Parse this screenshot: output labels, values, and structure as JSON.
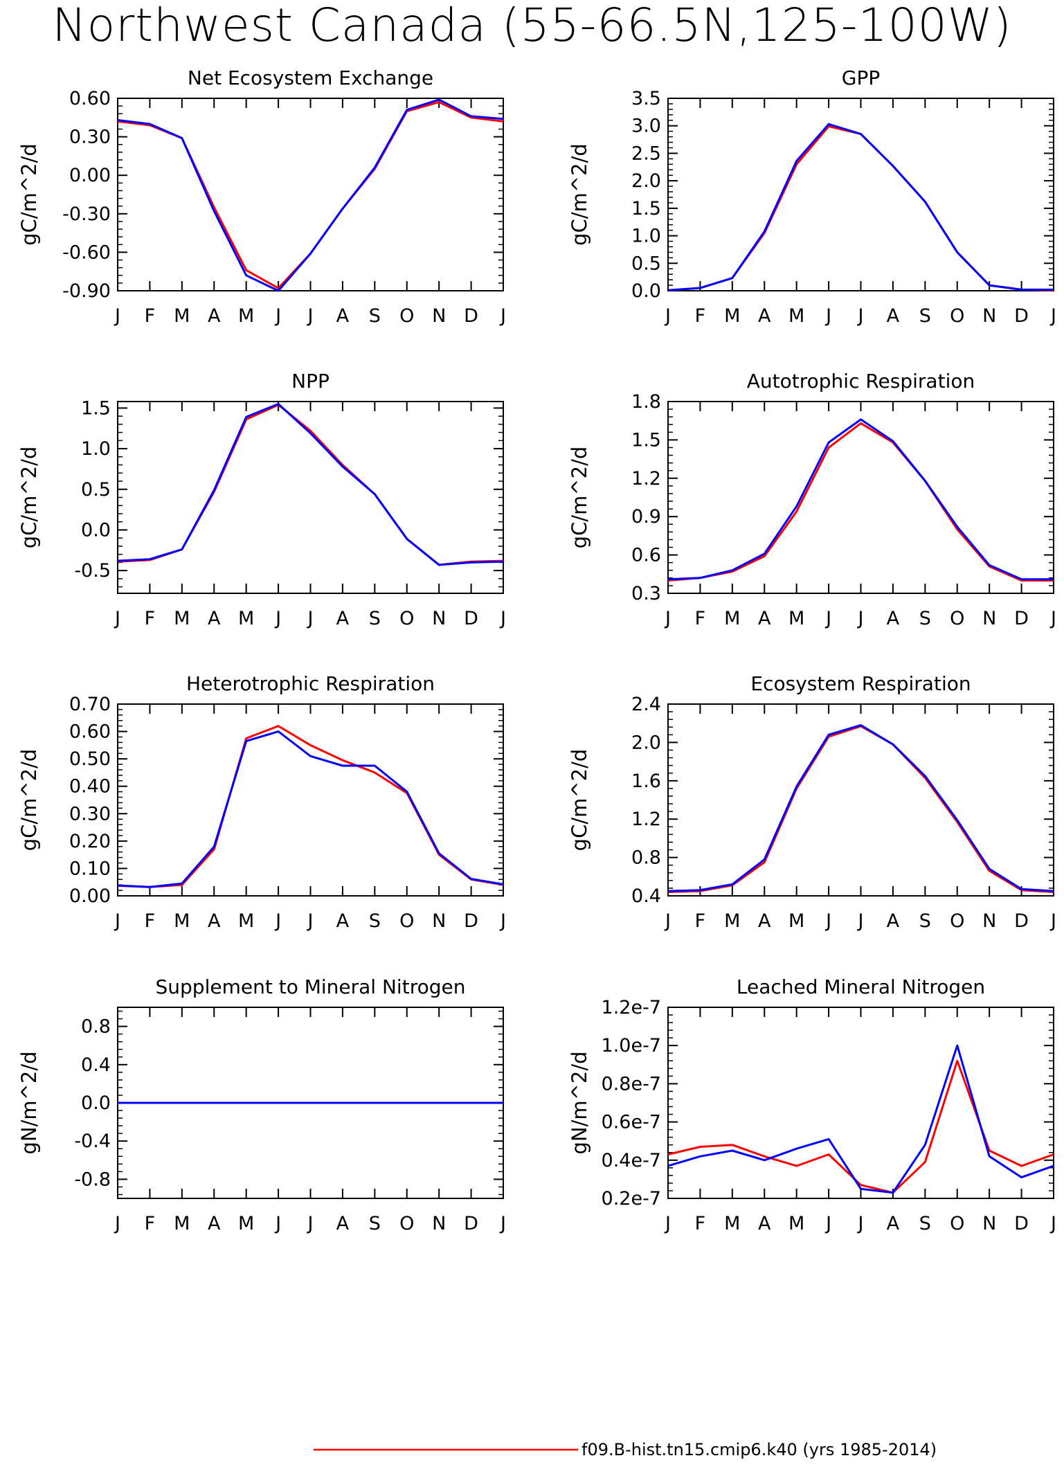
{
  "title": "Northwest Canada (55-66.5N,125-100W)",
  "legend": [
    {
      "label": "f09.B-hist.tn15.cmip6.k40 (yrs 1985-2014)",
      "color": "#ff0000"
    }
  ],
  "chart_data": [
    {
      "type": "line",
      "title": "Net Ecosystem Exchange",
      "ylabel": "gC/m^2/d",
      "categories": [
        "J",
        "F",
        "M",
        "A",
        "M",
        "J",
        "J",
        "A",
        "S",
        "O",
        "N",
        "D",
        "J"
      ],
      "ylim": [
        -0.9,
        0.6
      ],
      "yticks": [
        -0.9,
        -0.6,
        -0.3,
        0.0,
        0.3,
        0.6
      ],
      "ytick_labels": [
        "-0.90",
        "-0.60",
        "-0.30",
        "0.00",
        "0.30",
        "0.60"
      ],
      "series": [
        {
          "color": "#ff0000",
          "values": [
            0.42,
            0.39,
            0.29,
            -0.25,
            -0.74,
            -0.88,
            -0.61,
            -0.26,
            0.05,
            0.5,
            0.57,
            0.45,
            0.42
          ]
        },
        {
          "color": "#0000ff",
          "values": [
            0.43,
            0.4,
            0.29,
            -0.28,
            -0.78,
            -0.9,
            -0.61,
            -0.26,
            0.06,
            0.51,
            0.59,
            0.46,
            0.44
          ]
        }
      ]
    },
    {
      "type": "line",
      "title": "GPP",
      "ylabel": "gC/m^2/d",
      "categories": [
        "J",
        "F",
        "M",
        "A",
        "M",
        "J",
        "J",
        "A",
        "S",
        "O",
        "N",
        "D",
        "J"
      ],
      "ylim": [
        0.0,
        3.5
      ],
      "yticks": [
        0.0,
        0.5,
        1.0,
        1.5,
        2.0,
        2.5,
        3.0,
        3.5
      ],
      "ytick_labels": [
        "0.0",
        "0.5",
        "1.0",
        "1.5",
        "2.0",
        "2.5",
        "3.0",
        "3.5"
      ],
      "series": [
        {
          "color": "#ff0000",
          "values": [
            0.01,
            0.05,
            0.23,
            1.05,
            2.3,
            2.99,
            2.85,
            2.27,
            1.62,
            0.7,
            0.1,
            0.02,
            0.01
          ]
        },
        {
          "color": "#0000ff",
          "values": [
            0.01,
            0.05,
            0.23,
            1.08,
            2.36,
            3.03,
            2.85,
            2.27,
            1.62,
            0.7,
            0.1,
            0.02,
            0.02
          ]
        }
      ]
    },
    {
      "type": "line",
      "title": "NPP",
      "ylabel": "gC/m^2/d",
      "categories": [
        "J",
        "F",
        "M",
        "A",
        "M",
        "J",
        "J",
        "A",
        "S",
        "O",
        "N",
        "D",
        "J"
      ],
      "ylim": [
        -0.78,
        1.58
      ],
      "yticks": [
        -0.5,
        0.0,
        0.5,
        1.0,
        1.5
      ],
      "ytick_labels": [
        "-0.5",
        "0.0",
        "0.5",
        "1.0",
        "1.5"
      ],
      "series": [
        {
          "color": "#ff0000",
          "values": [
            -0.39,
            -0.37,
            -0.24,
            0.47,
            1.36,
            1.54,
            1.22,
            0.8,
            0.44,
            -0.11,
            -0.43,
            -0.39,
            -0.38
          ]
        },
        {
          "color": "#0000ff",
          "values": [
            -0.38,
            -0.36,
            -0.24,
            0.49,
            1.39,
            1.55,
            1.19,
            0.78,
            0.44,
            -0.11,
            -0.43,
            -0.4,
            -0.39
          ]
        }
      ]
    },
    {
      "type": "line",
      "title": "Autotrophic Respiration",
      "ylabel": "gC/m^2/d",
      "categories": [
        "J",
        "F",
        "M",
        "A",
        "M",
        "J",
        "J",
        "A",
        "S",
        "O",
        "N",
        "D",
        "J"
      ],
      "ylim": [
        0.3,
        1.8
      ],
      "yticks": [
        0.3,
        0.6,
        0.9,
        1.2,
        1.5,
        1.8
      ],
      "ytick_labels": [
        "0.3",
        "0.6",
        "0.9",
        "1.2",
        "1.5",
        "1.8"
      ],
      "series": [
        {
          "color": "#ff0000",
          "values": [
            0.4,
            0.42,
            0.47,
            0.59,
            0.94,
            1.44,
            1.63,
            1.48,
            1.18,
            0.8,
            0.51,
            0.4,
            0.4
          ]
        },
        {
          "color": "#0000ff",
          "values": [
            0.41,
            0.42,
            0.48,
            0.61,
            0.98,
            1.48,
            1.66,
            1.49,
            1.18,
            0.82,
            0.52,
            0.41,
            0.41
          ]
        }
      ]
    },
    {
      "type": "line",
      "title": "Heterotrophic Respiration",
      "ylabel": "gC/m^2/d",
      "categories": [
        "J",
        "F",
        "M",
        "A",
        "M",
        "J",
        "J",
        "A",
        "S",
        "O",
        "N",
        "D",
        "J"
      ],
      "ylim": [
        0.0,
        0.7
      ],
      "yticks": [
        0.0,
        0.1,
        0.2,
        0.3,
        0.4,
        0.5,
        0.6,
        0.7
      ],
      "ytick_labels": [
        "0.00",
        "0.10",
        "0.20",
        "0.30",
        "0.40",
        "0.50",
        "0.60",
        "0.70"
      ],
      "series": [
        {
          "color": "#ff0000",
          "values": [
            0.037,
            0.032,
            0.04,
            0.17,
            0.575,
            0.62,
            0.55,
            0.495,
            0.45,
            0.375,
            0.15,
            0.06,
            0.04
          ]
        },
        {
          "color": "#0000ff",
          "values": [
            0.038,
            0.032,
            0.045,
            0.18,
            0.565,
            0.6,
            0.51,
            0.475,
            0.475,
            0.38,
            0.155,
            0.062,
            0.042
          ]
        }
      ]
    },
    {
      "type": "line",
      "title": "Ecosystem Respiration",
      "ylabel": "gC/m^2/d",
      "categories": [
        "J",
        "F",
        "M",
        "A",
        "M",
        "J",
        "J",
        "A",
        "S",
        "O",
        "N",
        "D",
        "J"
      ],
      "ylim": [
        0.4,
        2.4
      ],
      "yticks": [
        0.4,
        0.8,
        1.2,
        1.6,
        2.0,
        2.4
      ],
      "ytick_labels": [
        "0.4",
        "0.8",
        "1.2",
        "1.6",
        "2.0",
        "2.4"
      ],
      "series": [
        {
          "color": "#ff0000",
          "values": [
            0.44,
            0.45,
            0.51,
            0.75,
            1.52,
            2.06,
            2.17,
            1.98,
            1.63,
            1.17,
            0.66,
            0.46,
            0.44
          ]
        },
        {
          "color": "#0000ff",
          "values": [
            0.45,
            0.46,
            0.52,
            0.78,
            1.54,
            2.08,
            2.18,
            1.98,
            1.65,
            1.19,
            0.68,
            0.47,
            0.45
          ]
        }
      ]
    },
    {
      "type": "line",
      "title": "Supplement to Mineral Nitrogen",
      "ylabel": "gN/m^2/d",
      "categories": [
        "J",
        "F",
        "M",
        "A",
        "M",
        "J",
        "J",
        "A",
        "S",
        "O",
        "N",
        "D",
        "J"
      ],
      "ylim": [
        -1.0,
        1.0
      ],
      "yticks": [
        -0.8,
        -0.4,
        0.0,
        0.4,
        0.8
      ],
      "ytick_labels": [
        "-0.8",
        "-0.4",
        "0.0",
        "0.4",
        "0.8"
      ],
      "series": [
        {
          "color": "#ff0000",
          "values": [
            0,
            0,
            0,
            0,
            0,
            0,
            0,
            0,
            0,
            0,
            0,
            0,
            0
          ]
        },
        {
          "color": "#0000ff",
          "values": [
            0,
            0,
            0,
            0,
            0,
            0,
            0,
            0,
            0,
            0,
            0,
            0,
            0
          ]
        }
      ]
    },
    {
      "type": "line",
      "title": "Leached Mineral Nitrogen",
      "ylabel": "gN/m^2/d",
      "categories": [
        "J",
        "F",
        "M",
        "A",
        "M",
        "J",
        "J",
        "A",
        "S",
        "O",
        "N",
        "D",
        "J"
      ],
      "ylim": [
        2e-08,
        1.2e-07
      ],
      "yticks": [
        2e-08,
        4e-08,
        6e-08,
        8e-08,
        1e-07,
        1.2e-07
      ],
      "ytick_labels": [
        "0.2e-7",
        "0.4e-7",
        "0.6e-7",
        "0.8e-7",
        "1.0e-7",
        "1.2e-7"
      ],
      "series": [
        {
          "color": "#ff0000",
          "values": [
            4.3e-08,
            4.7e-08,
            4.8e-08,
            4.2e-08,
            3.7e-08,
            4.3e-08,
            2.7e-08,
            2.3e-08,
            3.9e-08,
            9.2e-08,
            4.5e-08,
            3.7e-08,
            4.3e-08
          ]
        },
        {
          "color": "#0000ff",
          "values": [
            3.7e-08,
            4.2e-08,
            4.5e-08,
            4e-08,
            4.6e-08,
            5.1e-08,
            2.5e-08,
            2.3e-08,
            4.8e-08,
            1e-07,
            4.2e-08,
            3.1e-08,
            3.7e-08
          ]
        }
      ]
    }
  ]
}
